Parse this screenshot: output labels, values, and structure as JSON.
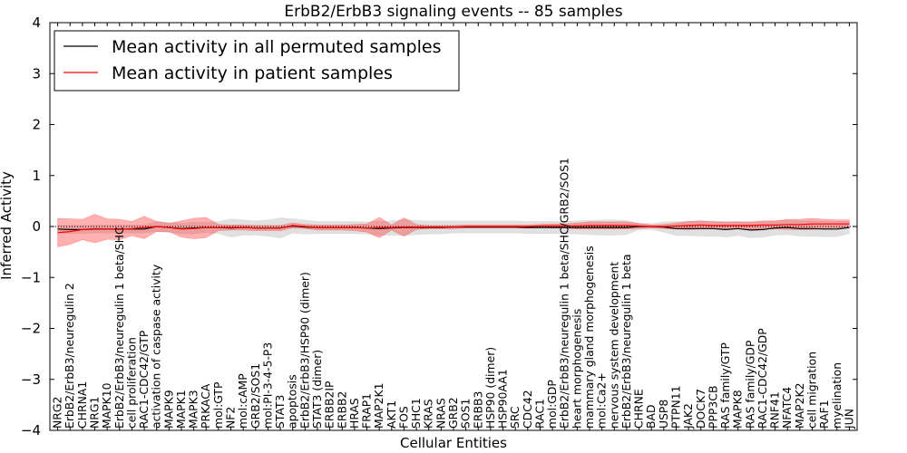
{
  "chart_data": {
    "type": "line",
    "title": "ErbB2/ErbB3 signaling events -- 85 samples",
    "xlabel": "Cellular Entities",
    "ylabel": "Inferred Activity",
    "ylim": [
      -4,
      4
    ],
    "yticks": [
      -4,
      -3,
      -2,
      -1,
      0,
      1,
      2,
      3,
      4
    ],
    "yticklabels": [
      "−4",
      "−3",
      "−2",
      "−1",
      "0",
      "1",
      "2",
      "3",
      "4"
    ],
    "legend_position": "top-left",
    "categories": [
      "NRG2",
      "ErbB2/ErbB3/neuregulin 2",
      "CHRNA1",
      "NRG1",
      "MAPK10",
      "ErbB2/ErbB3/neuregulin 1 beta/SHC",
      "cell proliferation",
      "RAC1-CDC42/GTP",
      "activation of caspase activity",
      "MAPK9",
      "MAPK1",
      "MAPK3",
      "PRKACA",
      "mol:GTP",
      "NF2",
      "mol:cAMP",
      "GRB2/SOS1",
      "mol:PI-3-4-5-P3",
      "STAT3",
      "apoptosis",
      "ErbB2/ErbB3/HSP90 (dimer)",
      "STAT3 (dimer)",
      "ERBB2IP",
      "ERBB2",
      "HRAS",
      "FRAP1",
      "MAP2K1",
      "AKT1",
      "FOS",
      "SHC1",
      "KRAS",
      "NRAS",
      "GRB2",
      "SOS1",
      "ERBB3",
      "HSP90 (dimer)",
      "HSP90AA1",
      "SRC",
      "CDC42",
      "RAC1",
      "mol:GDP",
      "ErbB2/ErbB3/neuregulin 1 beta/SHC/GRB2/SOS1",
      "heart morphogenesis",
      "mammary gland morphogenesis",
      "mol:Ca2+",
      "nervous system development",
      "ErbB2/ErbB3/neuregulin 1 beta",
      "CHRNE",
      "BAD",
      "USP8",
      "PTPN11",
      "JAK2",
      "DOCK7",
      "PPP3CB",
      "RAS family/GTP",
      "MAPK8",
      "RAS family/GDP",
      "RAC1-CDC42/GDP",
      "RNF41",
      "NFATC4",
      "MAP2K2",
      "cell migration",
      "RAF1",
      "myelination",
      "JUN"
    ],
    "series": [
      {
        "name": "Mean activity in all permuted samples",
        "color": "#000000",
        "values": [
          -0.05,
          -0.06,
          -0.06,
          -0.05,
          -0.05,
          -0.05,
          -0.05,
          -0.05,
          0.0,
          -0.02,
          -0.04,
          -0.03,
          -0.02,
          -0.02,
          -0.03,
          -0.02,
          -0.03,
          -0.03,
          -0.03,
          0.01,
          -0.01,
          -0.02,
          -0.02,
          -0.02,
          -0.02,
          -0.03,
          -0.04,
          -0.03,
          -0.02,
          -0.02,
          -0.02,
          -0.02,
          -0.01,
          -0.01,
          -0.01,
          -0.01,
          -0.01,
          -0.01,
          -0.02,
          -0.02,
          -0.02,
          -0.02,
          -0.02,
          -0.02,
          -0.02,
          -0.02,
          -0.02,
          0.0,
          0.0,
          -0.01,
          -0.04,
          -0.04,
          -0.04,
          -0.04,
          -0.06,
          -0.04,
          -0.07,
          -0.06,
          -0.03,
          -0.02,
          -0.04,
          -0.04,
          -0.05,
          -0.05,
          -0.02
        ],
        "band": [
          0.08,
          0.08,
          0.08,
          0.08,
          0.08,
          0.08,
          0.08,
          0.08,
          0.1,
          0.1,
          0.1,
          0.12,
          0.1,
          0.12,
          0.18,
          0.15,
          0.14,
          0.16,
          0.2,
          0.14,
          0.14,
          0.12,
          0.12,
          0.12,
          0.12,
          0.12,
          0.14,
          0.14,
          0.16,
          0.14,
          0.13,
          0.13,
          0.12,
          0.12,
          0.12,
          0.12,
          0.12,
          0.12,
          0.12,
          0.12,
          0.12,
          0.12,
          0.13,
          0.14,
          0.15,
          0.15,
          0.14,
          0.06,
          0.06,
          0.1,
          0.14,
          0.14,
          0.15,
          0.15,
          0.15,
          0.14,
          0.15,
          0.15,
          0.14,
          0.14,
          0.15,
          0.15,
          0.15,
          0.15,
          0.12
        ]
      },
      {
        "name": "Mean activity in patient samples",
        "color": "#ff0000",
        "values": [
          -0.12,
          -0.1,
          -0.06,
          -0.04,
          -0.05,
          -0.06,
          -0.04,
          -0.02,
          0.0,
          -0.02,
          -0.05,
          -0.04,
          -0.02,
          -0.02,
          -0.02,
          -0.02,
          -0.03,
          -0.03,
          -0.03,
          0.02,
          0.0,
          -0.02,
          -0.02,
          -0.02,
          -0.02,
          -0.03,
          -0.02,
          -0.02,
          -0.01,
          -0.01,
          -0.01,
          -0.01,
          -0.01,
          0.0,
          0.0,
          0.0,
          0.0,
          0.0,
          0.0,
          0.01,
          0.01,
          0.01,
          0.01,
          0.02,
          0.02,
          0.02,
          0.02,
          0.01,
          0.0,
          0.0,
          0.01,
          0.02,
          0.03,
          0.02,
          0.02,
          0.02,
          0.02,
          0.03,
          0.03,
          0.04,
          0.04,
          0.05,
          0.05,
          0.05,
          0.05
        ],
        "band": [
          0.28,
          0.25,
          0.2,
          0.28,
          0.2,
          0.2,
          0.14,
          0.22,
          0.1,
          0.08,
          0.16,
          0.2,
          0.2,
          0.06,
          0.05,
          0.05,
          0.05,
          0.05,
          0.05,
          0.05,
          0.04,
          0.05,
          0.05,
          0.05,
          0.06,
          0.08,
          0.2,
          0.05,
          0.18,
          0.05,
          0.03,
          0.03,
          0.03,
          0.03,
          0.03,
          0.03,
          0.03,
          0.03,
          0.03,
          0.03,
          0.04,
          0.04,
          0.06,
          0.07,
          0.07,
          0.07,
          0.07,
          0.05,
          0.03,
          0.04,
          0.06,
          0.08,
          0.08,
          0.07,
          0.07,
          0.07,
          0.07,
          0.08,
          0.08,
          0.1,
          0.1,
          0.11,
          0.09,
          0.08,
          0.08
        ]
      }
    ],
    "zero_line": "dotted"
  }
}
